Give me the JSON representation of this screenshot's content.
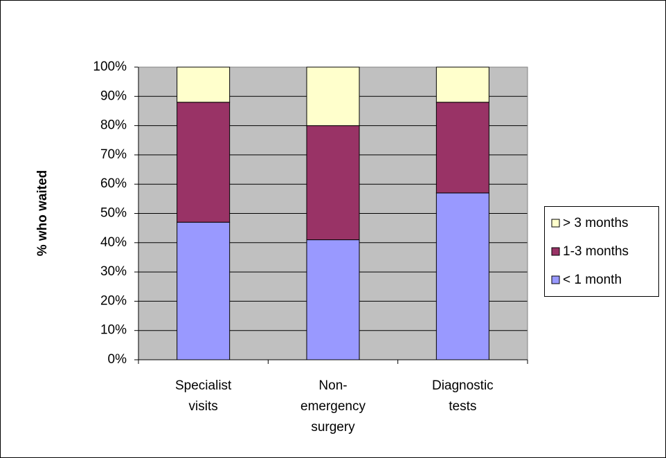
{
  "chart_data": {
    "type": "stacked-bar",
    "y_axis_label": "% who waited",
    "categories": [
      "Specialist visits",
      "Non-emergency surgery",
      "Diagnostic tests"
    ],
    "series": [
      {
        "name": "< 1 month",
        "color": "#9999ff",
        "values": [
          47,
          41,
          57
        ]
      },
      {
        "name": "1-3 months",
        "color": "#993366",
        "values": [
          41,
          39,
          31
        ]
      },
      {
        "name": "> 3 months",
        "color": "#ffffcc",
        "values": [
          12,
          20,
          12
        ]
      }
    ],
    "ylim": [
      0,
      100
    ],
    "yticks": [
      {
        "value": 0,
        "label": "0%"
      },
      {
        "value": 10,
        "label": "10%"
      },
      {
        "value": 20,
        "label": "20%"
      },
      {
        "value": 30,
        "label": "30%"
      },
      {
        "value": 40,
        "label": "40%"
      },
      {
        "value": 50,
        "label": "50%"
      },
      {
        "value": 60,
        "label": "60%"
      },
      {
        "value": 70,
        "label": "70%"
      },
      {
        "value": 80,
        "label": "80%"
      },
      {
        "value": 90,
        "label": "90%"
      },
      {
        "value": 100,
        "label": "100%"
      }
    ],
    "grid": true,
    "plot_background": "#c0c0c0",
    "legend": "right"
  }
}
